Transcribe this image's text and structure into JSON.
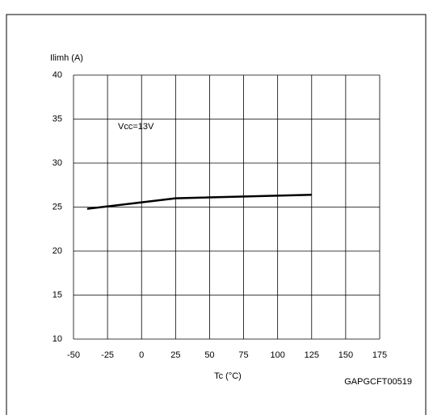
{
  "chart_data": {
    "type": "line",
    "x_label": "Tc (°C)",
    "y_label": "Ilimh (A)",
    "annotation": "Vcc=13V",
    "figure_id": "GAPGCFT00519",
    "series": [
      {
        "name": "Ilimh",
        "color": "#000000",
        "x": [
          -40,
          25,
          125
        ],
        "values": [
          24.8,
          26,
          26.4
        ]
      }
    ],
    "xlim": [
      -50,
      175
    ],
    "xticks": [
      -50,
      -25,
      0,
      25,
      50,
      75,
      100,
      125,
      150,
      175
    ],
    "ylim": [
      10,
      40
    ],
    "yticks": [
      10,
      15,
      20,
      25,
      30,
      35,
      40
    ],
    "grid": true
  }
}
